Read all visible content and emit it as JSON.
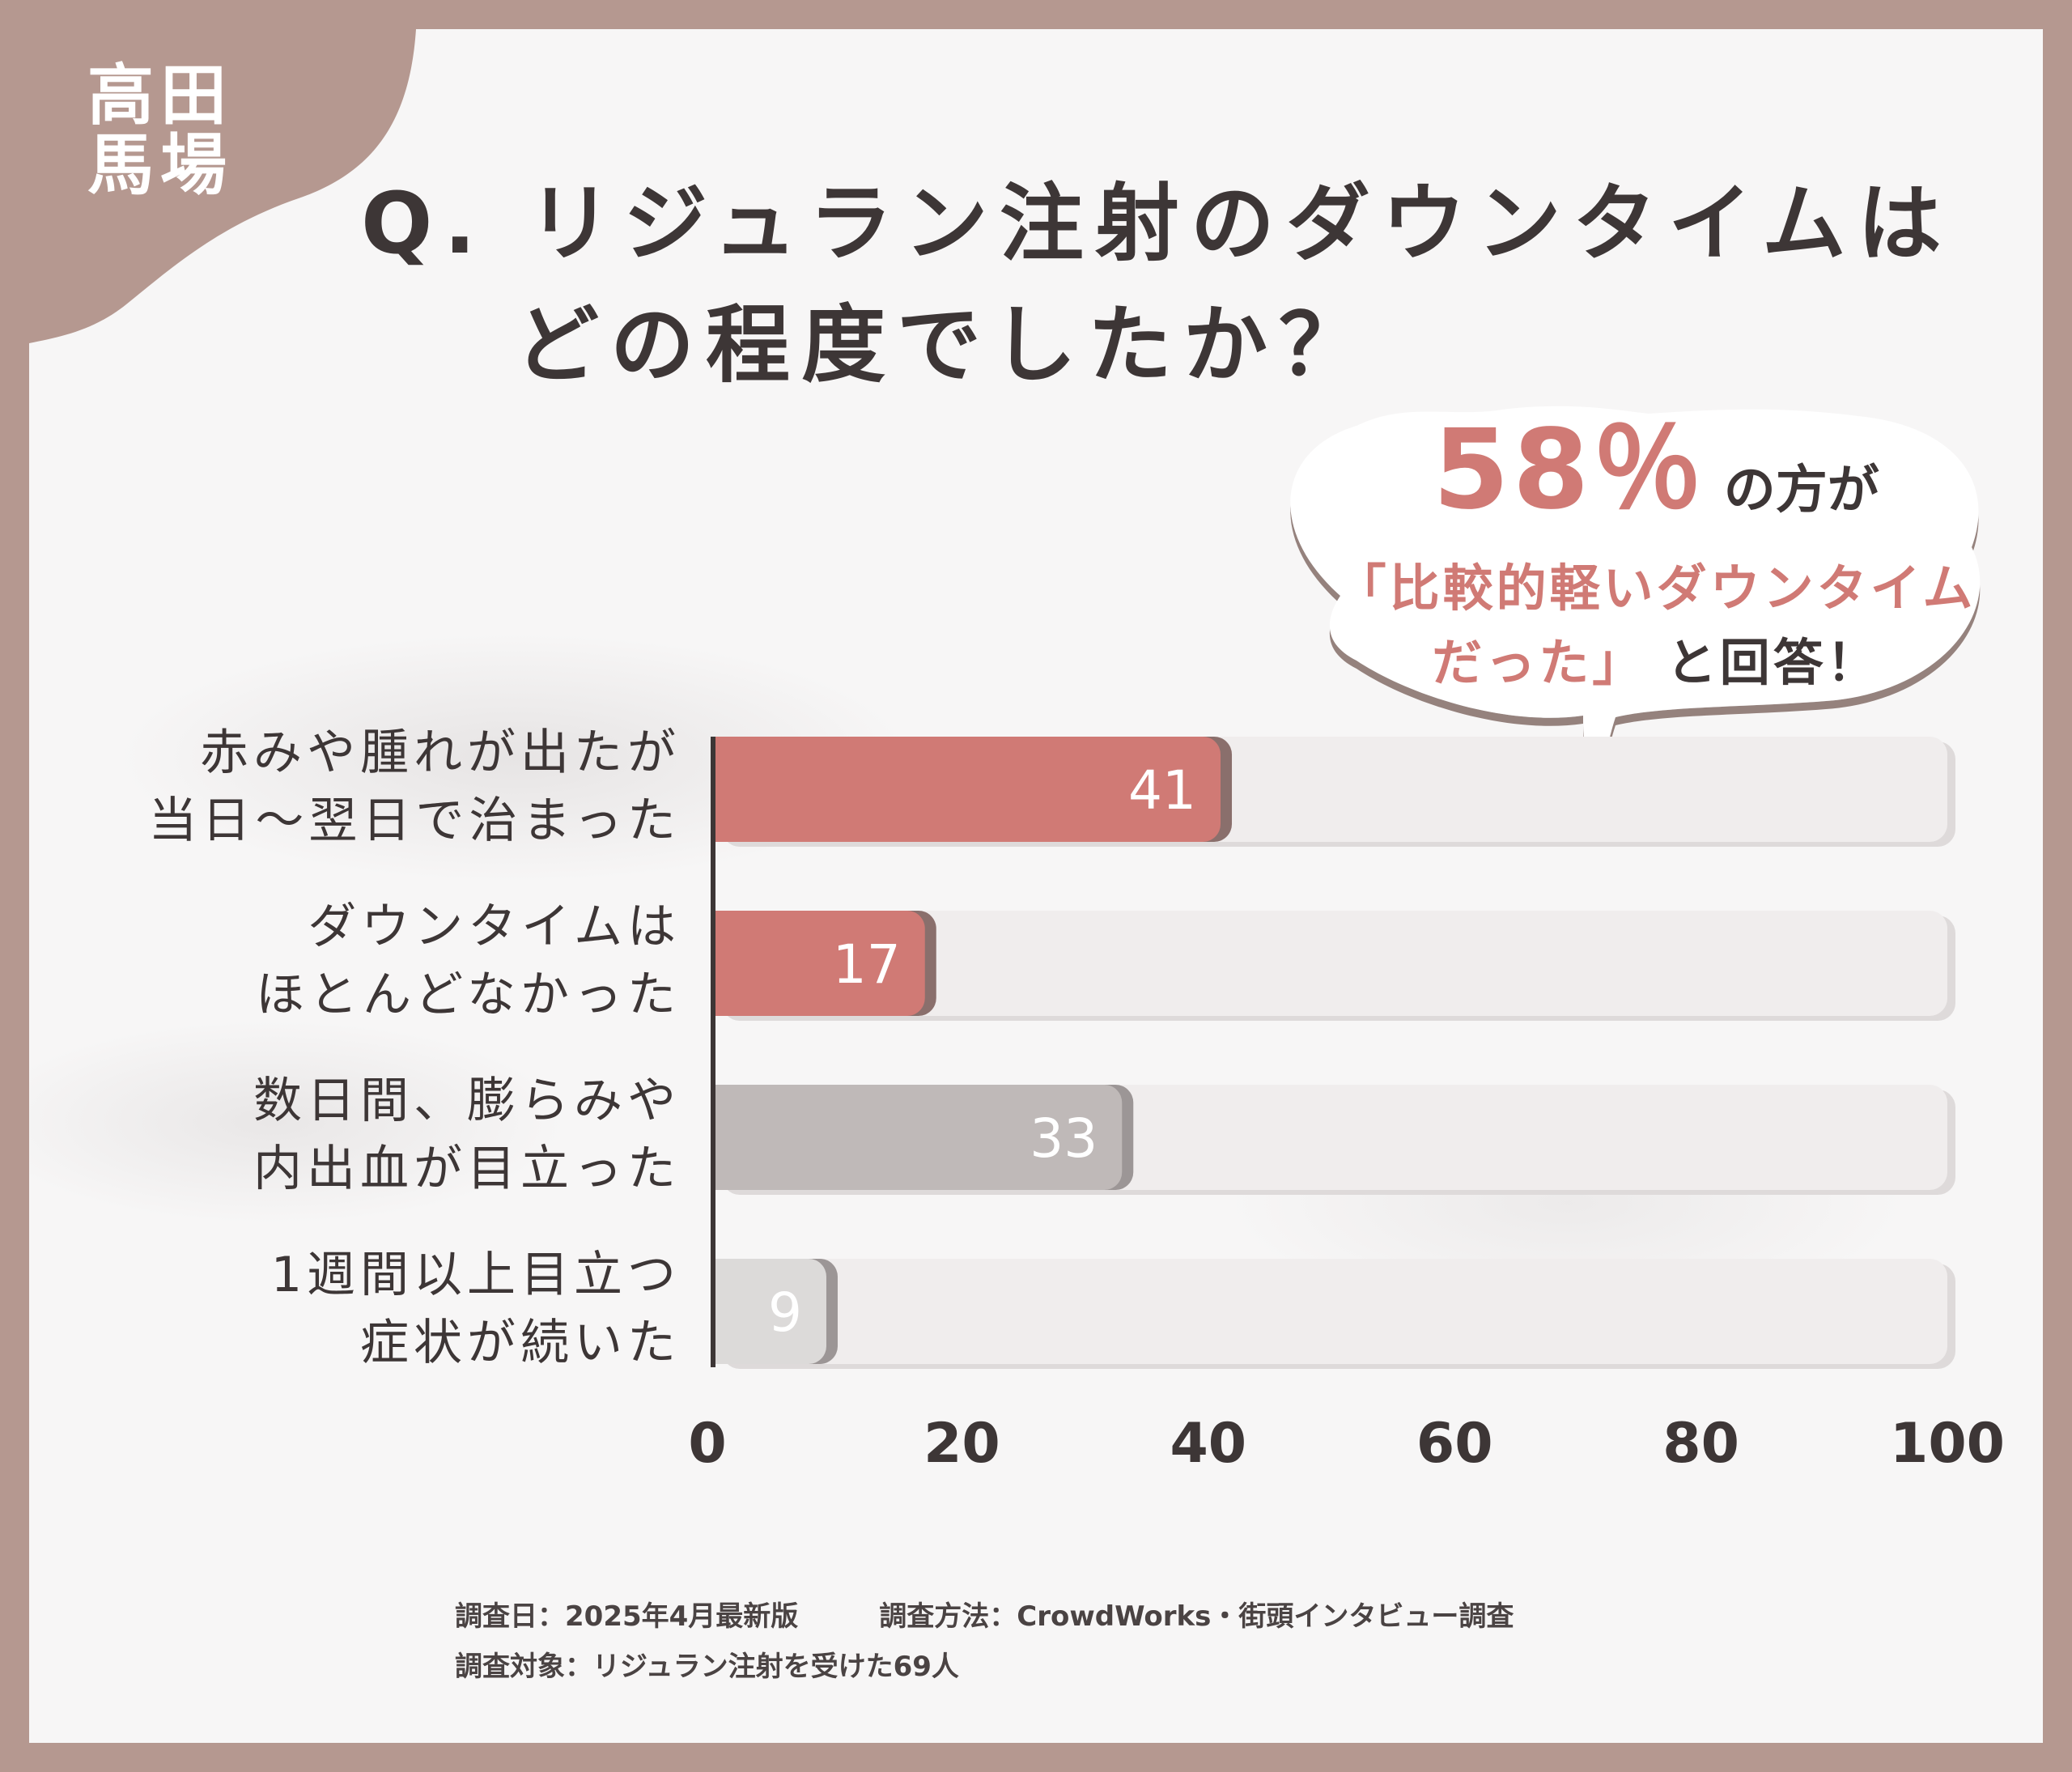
{
  "logo": {
    "line1": "高田",
    "line2": "馬場"
  },
  "title": {
    "line1": "Q. リジュラン注射のダウンタイムは",
    "line2": "どの程度でしたか？"
  },
  "callout": {
    "percent": "58％",
    "after_percent": "の方が",
    "quote_line1": "「比較的軽いダウンタイム",
    "quote_line2": "だった」",
    "after_quote": "と回答！"
  },
  "chart_data": {
    "type": "bar",
    "orientation": "horizontal",
    "categories": [
      [
        "赤みや腫れが出たが",
        "当日～翌日で治まった"
      ],
      [
        "ダウンタイムは",
        "ほとんどなかった"
      ],
      [
        "数日間、膨らみや",
        "内出血が目立った"
      ],
      [
        "1週間以上目立つ",
        "症状が続いた"
      ]
    ],
    "values": [
      41,
      17,
      33,
      9
    ],
    "bar_colors": [
      "#d07a75",
      "#d07a75",
      "#bfb9b8",
      "#dcdad9"
    ],
    "value_label_colors": [
      "#ffffff",
      "#ffffff",
      "#ffffff",
      "#f2f1f1"
    ],
    "track_color": "#f0eded",
    "xlim": [
      0,
      100
    ],
    "xticks": [
      0,
      20,
      40,
      60,
      80,
      100
    ]
  },
  "footer": {
    "date": "調査日：2025年4月最新版",
    "method": "調査方法：CrowdWorks・街頭インタビュー調査",
    "target": "調査対象：リジュラン注射を受けた69人"
  }
}
